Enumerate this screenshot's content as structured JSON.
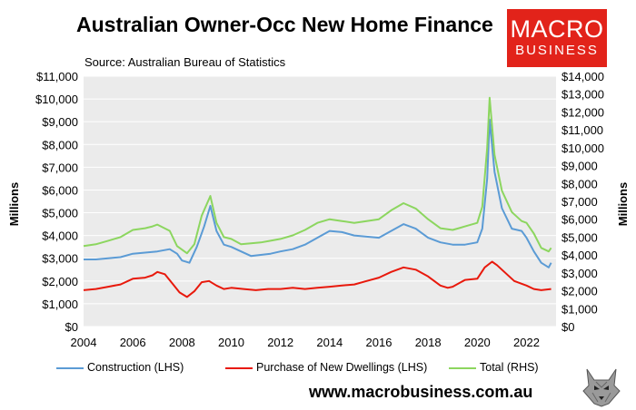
{
  "title": "Australian Owner-Occ New Home Finance",
  "source": "Source: Australian Bureau of Statistics",
  "logo": {
    "line1": "MACRO",
    "line2": "BUSINESS"
  },
  "website": "www.macrobusiness.com.au",
  "colors": {
    "construction": "#5b9bd5",
    "purchase": "#e8190c",
    "total": "#8cd65f",
    "plot_bg": "#ebebeb",
    "logo_bg": "#e2231a"
  },
  "chart_data": {
    "type": "line",
    "ylabel_left": "Millions",
    "ylabel_right": "Millions",
    "ylim_left": [
      0,
      11000
    ],
    "ylim_right": [
      0,
      14000
    ],
    "xlim": [
      2004,
      2023.2
    ],
    "y_ticks_left": [
      "$0",
      "$1,000",
      "$2,000",
      "$3,000",
      "$4,000",
      "$5,000",
      "$6,000",
      "$7,000",
      "$8,000",
      "$9,000",
      "$10,000",
      "$11,000"
    ],
    "y_ticks_right": [
      "$0",
      "$1,000",
      "$2,000",
      "$3,000",
      "$4,000",
      "$5,000",
      "$6,000",
      "$7,000",
      "$8,000",
      "$9,000",
      "$10,000",
      "$11,000",
      "$12,000",
      "$13,000",
      "$14,000"
    ],
    "x_ticks": [
      "2004",
      "2006",
      "2008",
      "2010",
      "2012",
      "2014",
      "2016",
      "2018",
      "2020",
      "2022"
    ],
    "grid": true,
    "legend_position": "bottom",
    "series": [
      {
        "name": "Construction (LHS)",
        "axis": "left",
        "color": "#5b9bd5",
        "points": [
          [
            2004.0,
            2950
          ],
          [
            2004.5,
            2950
          ],
          [
            2005.0,
            3000
          ],
          [
            2005.5,
            3050
          ],
          [
            2006.0,
            3200
          ],
          [
            2006.5,
            3250
          ],
          [
            2007.0,
            3300
          ],
          [
            2007.5,
            3400
          ],
          [
            2007.8,
            3200
          ],
          [
            2008.0,
            2900
          ],
          [
            2008.3,
            2800
          ],
          [
            2008.6,
            3500
          ],
          [
            2008.9,
            4400
          ],
          [
            2009.15,
            5300
          ],
          [
            2009.4,
            4200
          ],
          [
            2009.7,
            3600
          ],
          [
            2010.0,
            3500
          ],
          [
            2010.4,
            3300
          ],
          [
            2010.8,
            3100
          ],
          [
            2011.2,
            3150
          ],
          [
            2011.6,
            3200
          ],
          [
            2012.0,
            3300
          ],
          [
            2012.5,
            3400
          ],
          [
            2013.0,
            3600
          ],
          [
            2013.5,
            3900
          ],
          [
            2014.0,
            4200
          ],
          [
            2014.5,
            4150
          ],
          [
            2015.0,
            4000
          ],
          [
            2015.5,
            3950
          ],
          [
            2016.0,
            3900
          ],
          [
            2016.5,
            4200
          ],
          [
            2017.0,
            4500
          ],
          [
            2017.5,
            4300
          ],
          [
            2018.0,
            3900
          ],
          [
            2018.5,
            3700
          ],
          [
            2019.0,
            3600
          ],
          [
            2019.5,
            3600
          ],
          [
            2020.0,
            3700
          ],
          [
            2020.2,
            4300
          ],
          [
            2020.4,
            6500
          ],
          [
            2020.5,
            9100
          ],
          [
            2020.7,
            6800
          ],
          [
            2021.0,
            5200
          ],
          [
            2021.4,
            4300
          ],
          [
            2021.8,
            4200
          ],
          [
            2022.0,
            3900
          ],
          [
            2022.3,
            3300
          ],
          [
            2022.6,
            2800
          ],
          [
            2022.9,
            2600
          ],
          [
            2023.0,
            2800
          ]
        ]
      },
      {
        "name": "Purchase of New Dwellings (LHS)",
        "axis": "left",
        "color": "#e8190c",
        "points": [
          [
            2004.0,
            1600
          ],
          [
            2004.5,
            1650
          ],
          [
            2005.0,
            1750
          ],
          [
            2005.5,
            1850
          ],
          [
            2006.0,
            2100
          ],
          [
            2006.5,
            2150
          ],
          [
            2006.8,
            2250
          ],
          [
            2007.0,
            2400
          ],
          [
            2007.3,
            2300
          ],
          [
            2007.6,
            1900
          ],
          [
            2007.9,
            1500
          ],
          [
            2008.2,
            1300
          ],
          [
            2008.5,
            1550
          ],
          [
            2008.8,
            1950
          ],
          [
            2009.1,
            2000
          ],
          [
            2009.4,
            1800
          ],
          [
            2009.7,
            1650
          ],
          [
            2010.0,
            1700
          ],
          [
            2010.5,
            1650
          ],
          [
            2011.0,
            1600
          ],
          [
            2011.5,
            1650
          ],
          [
            2012.0,
            1650
          ],
          [
            2012.5,
            1700
          ],
          [
            2013.0,
            1650
          ],
          [
            2013.5,
            1700
          ],
          [
            2014.0,
            1750
          ],
          [
            2014.5,
            1800
          ],
          [
            2015.0,
            1850
          ],
          [
            2015.5,
            2000
          ],
          [
            2016.0,
            2150
          ],
          [
            2016.5,
            2400
          ],
          [
            2017.0,
            2600
          ],
          [
            2017.5,
            2500
          ],
          [
            2018.0,
            2200
          ],
          [
            2018.5,
            1800
          ],
          [
            2018.8,
            1700
          ],
          [
            2019.0,
            1750
          ],
          [
            2019.5,
            2050
          ],
          [
            2020.0,
            2100
          ],
          [
            2020.3,
            2600
          ],
          [
            2020.6,
            2850
          ],
          [
            2020.8,
            2700
          ],
          [
            2021.0,
            2500
          ],
          [
            2021.5,
            2000
          ],
          [
            2022.0,
            1800
          ],
          [
            2022.3,
            1650
          ],
          [
            2022.6,
            1600
          ],
          [
            2023.0,
            1650
          ]
        ]
      },
      {
        "name": "Total (RHS)",
        "axis": "right",
        "color": "#8cd65f",
        "points": [
          [
            2004.0,
            4500
          ],
          [
            2004.5,
            4600
          ],
          [
            2005.0,
            4800
          ],
          [
            2005.5,
            5000
          ],
          [
            2006.0,
            5400
          ],
          [
            2006.5,
            5500
          ],
          [
            2006.8,
            5600
          ],
          [
            2007.0,
            5700
          ],
          [
            2007.5,
            5350
          ],
          [
            2007.8,
            4500
          ],
          [
            2008.2,
            4100
          ],
          [
            2008.5,
            4600
          ],
          [
            2008.8,
            6200
          ],
          [
            2009.15,
            7300
          ],
          [
            2009.4,
            5800
          ],
          [
            2009.7,
            5000
          ],
          [
            2010.0,
            4900
          ],
          [
            2010.4,
            4600
          ],
          [
            2010.8,
            4650
          ],
          [
            2011.2,
            4700
          ],
          [
            2011.6,
            4800
          ],
          [
            2012.0,
            4900
          ],
          [
            2012.5,
            5100
          ],
          [
            2013.0,
            5400
          ],
          [
            2013.5,
            5800
          ],
          [
            2014.0,
            6000
          ],
          [
            2014.5,
            5900
          ],
          [
            2015.0,
            5800
          ],
          [
            2015.5,
            5900
          ],
          [
            2016.0,
            6000
          ],
          [
            2016.5,
            6500
          ],
          [
            2017.0,
            6900
          ],
          [
            2017.5,
            6600
          ],
          [
            2018.0,
            6000
          ],
          [
            2018.5,
            5500
          ],
          [
            2019.0,
            5400
          ],
          [
            2019.5,
            5600
          ],
          [
            2020.0,
            5800
          ],
          [
            2020.2,
            6700
          ],
          [
            2020.4,
            10000
          ],
          [
            2020.5,
            12800
          ],
          [
            2020.7,
            9600
          ],
          [
            2021.0,
            7600
          ],
          [
            2021.4,
            6400
          ],
          [
            2021.8,
            5900
          ],
          [
            2022.0,
            5800
          ],
          [
            2022.3,
            5200
          ],
          [
            2022.6,
            4400
          ],
          [
            2022.9,
            4200
          ],
          [
            2023.0,
            4400
          ]
        ]
      }
    ]
  }
}
